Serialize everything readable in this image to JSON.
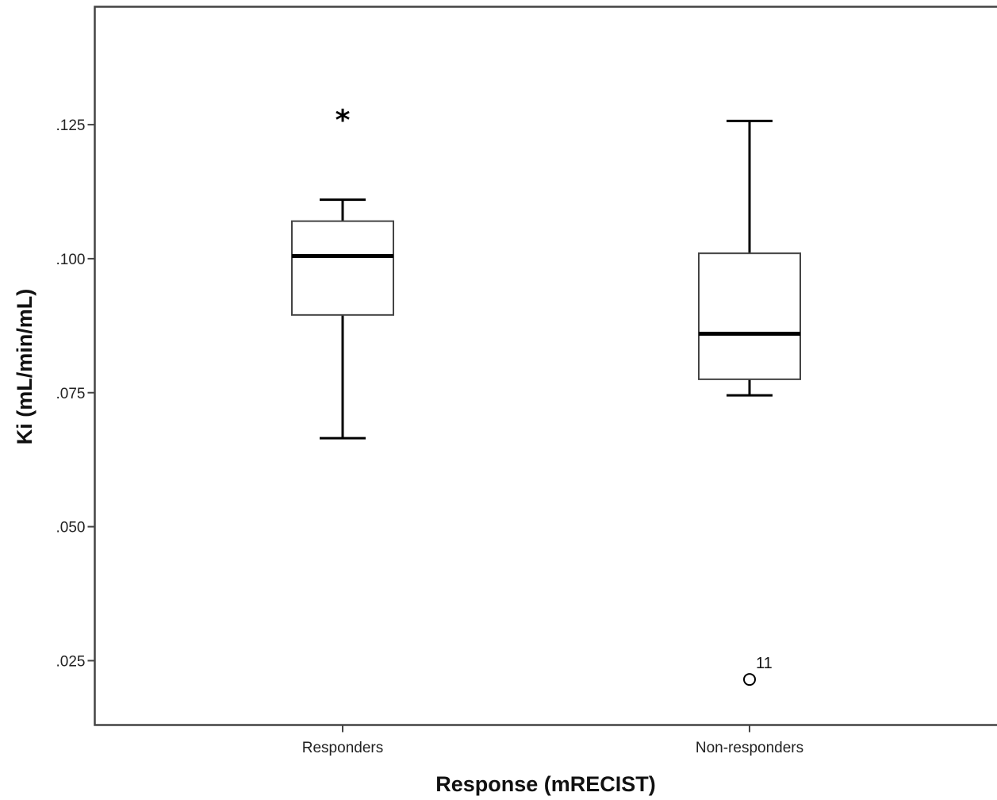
{
  "chart_data": {
    "type": "box",
    "xlabel": "Response (mRECIST)",
    "ylabel": "Ki (mL/min/mL)",
    "ylim": [
      0.013,
      0.147
    ],
    "yticks": [
      {
        "value": 0.025,
        "label": ".025"
      },
      {
        "value": 0.05,
        "label": ".050"
      },
      {
        "value": 0.075,
        "label": ".075"
      },
      {
        "value": 0.1,
        "label": ".100"
      },
      {
        "value": 0.125,
        "label": ".125"
      }
    ],
    "categories": [
      "Responders",
      "Non-responders"
    ],
    "boxes": [
      {
        "category": "Responders",
        "whisker_low": 0.0665,
        "q1": 0.0895,
        "median": 0.1005,
        "q3": 0.107,
        "whisker_high": 0.111,
        "outliers": [
          {
            "value": 0.127,
            "marker": "*",
            "label": ""
          }
        ]
      },
      {
        "category": "Non-responders",
        "whisker_low": 0.0745,
        "q1": 0.0775,
        "median": 0.086,
        "q3": 0.101,
        "whisker_high": 0.1257,
        "outliers": [
          {
            "value": 0.0215,
            "marker": "o",
            "label": "11"
          }
        ]
      }
    ]
  }
}
